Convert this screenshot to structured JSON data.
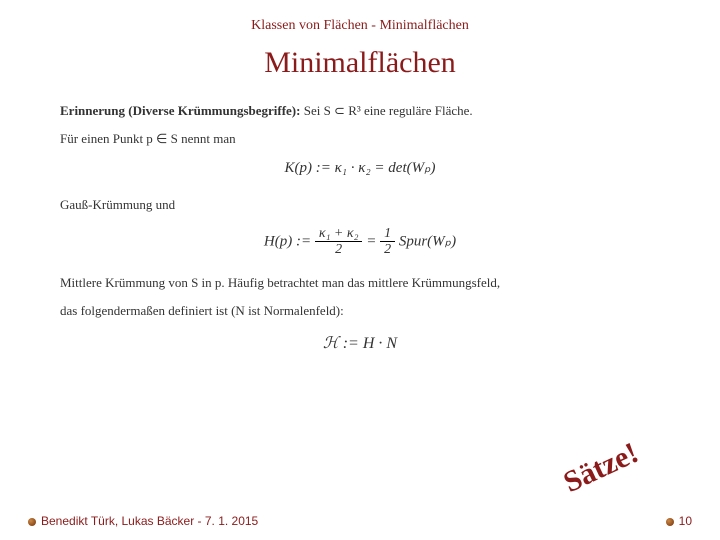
{
  "header": {
    "breadcrumb": "Klassen von Flächen - Minimalflächen"
  },
  "title": "Minimalflächen",
  "body": {
    "line1_bold": "Erinnerung (Diverse Krümmungsbegriffe):",
    "line1_rest": " Sei S ⊂ R³ eine reguläre Fläche.",
    "line2": "Für einen Punkt p ∈ S nennt man",
    "eq1": "K(p)  :=  κ₁ · κ₂  =  det(Wₚ)",
    "line3": "Gauß-Krümmung und",
    "eq2_lhs": "H(p)  :=  ",
    "eq2_num1": "κ₁ + κ₂",
    "eq2_den1": "2",
    "eq2_mid": "  =  ",
    "eq2_num2": "1",
    "eq2_den2": "2",
    "eq2_tail": " Spur(Wₚ)",
    "line4": "Mittlere Krümmung von S in p. Häufig betrachtet man  das mittlere Krümmungsfeld,",
    "line5": "das folgendermaßen definiert ist (N ist Normalenfeld):",
    "eq3": "ℋ  :=  H · N"
  },
  "annotation": "Sätze!",
  "footer": {
    "left": "Benedikt Türk, Lukas Bäcker - 7. 1. 2015",
    "page": "10"
  },
  "colors": {
    "accent": "#8b1a1a",
    "text": "#333333",
    "bg": "#ffffff"
  }
}
